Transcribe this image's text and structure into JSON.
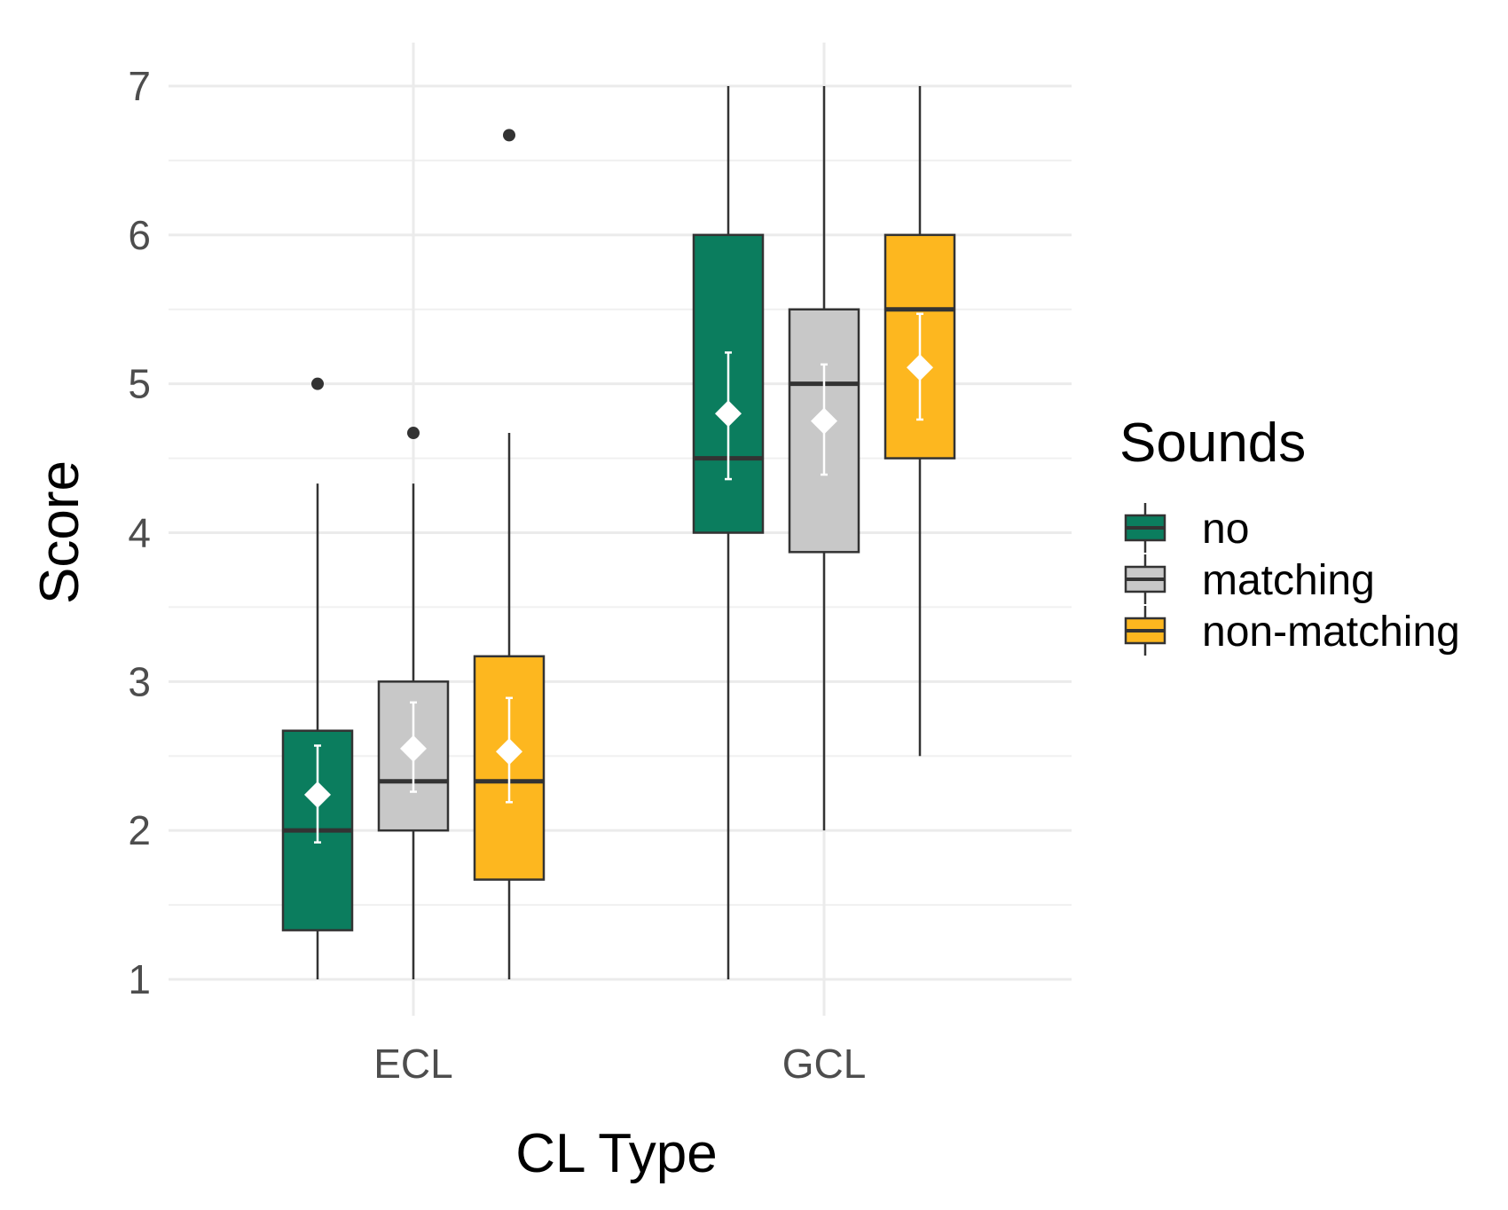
{
  "chart_data": {
    "type": "boxplot",
    "title": "",
    "xlabel": "CL Type",
    "ylabel": "Score",
    "ylim": [
      1,
      7
    ],
    "yticks": [
      1,
      2,
      3,
      4,
      5,
      6,
      7
    ],
    "yticks_labels": [
      "1",
      "2",
      "3",
      "4",
      "5",
      "6",
      "7"
    ],
    "grid": true,
    "categories": [
      "ECL",
      "GCL"
    ],
    "legend": {
      "title": "Sounds",
      "position": "right",
      "entries": [
        "no",
        "matching",
        "non-matching"
      ]
    },
    "series": [
      {
        "name": "no",
        "color": "#0b7d5e",
        "boxes": [
          {
            "category": "ECL",
            "whisker_low": 1.0,
            "q1": 1.33,
            "median": 2.0,
            "q3": 2.67,
            "whisker_high": 4.33,
            "outliers": [
              5.0
            ],
            "mean": 2.24,
            "ci_low": 1.92,
            "ci_high": 2.57
          },
          {
            "category": "GCL",
            "whisker_low": 1.0,
            "q1": 4.0,
            "median": 4.5,
            "q3": 6.0,
            "whisker_high": 7.0,
            "outliers": [],
            "mean": 4.8,
            "ci_low": 4.36,
            "ci_high": 5.21
          }
        ]
      },
      {
        "name": "matching",
        "color": "#c8c8c8",
        "boxes": [
          {
            "category": "ECL",
            "whisker_low": 1.0,
            "q1": 2.0,
            "median": 2.33,
            "q3": 3.0,
            "whisker_high": 4.33,
            "outliers": [
              4.67
            ],
            "mean": 2.55,
            "ci_low": 2.26,
            "ci_high": 2.86
          },
          {
            "category": "GCL",
            "whisker_low": 2.0,
            "q1": 3.87,
            "median": 5.0,
            "q3": 5.5,
            "whisker_high": 7.0,
            "outliers": [],
            "mean": 4.75,
            "ci_low": 4.39,
            "ci_high": 5.13
          }
        ]
      },
      {
        "name": "non-matching",
        "color": "#fdb71f",
        "boxes": [
          {
            "category": "ECL",
            "whisker_low": 1.0,
            "q1": 1.67,
            "median": 2.33,
            "q3": 3.17,
            "whisker_high": 4.67,
            "outliers": [
              6.67
            ],
            "mean": 2.53,
            "ci_low": 2.19,
            "ci_high": 2.89
          },
          {
            "category": "GCL",
            "whisker_low": 2.5,
            "q1": 4.5,
            "median": 5.5,
            "q3": 6.0,
            "whisker_high": 7.0,
            "outliers": [],
            "mean": 5.11,
            "ci_low": 4.76,
            "ci_high": 5.47
          }
        ]
      }
    ]
  }
}
